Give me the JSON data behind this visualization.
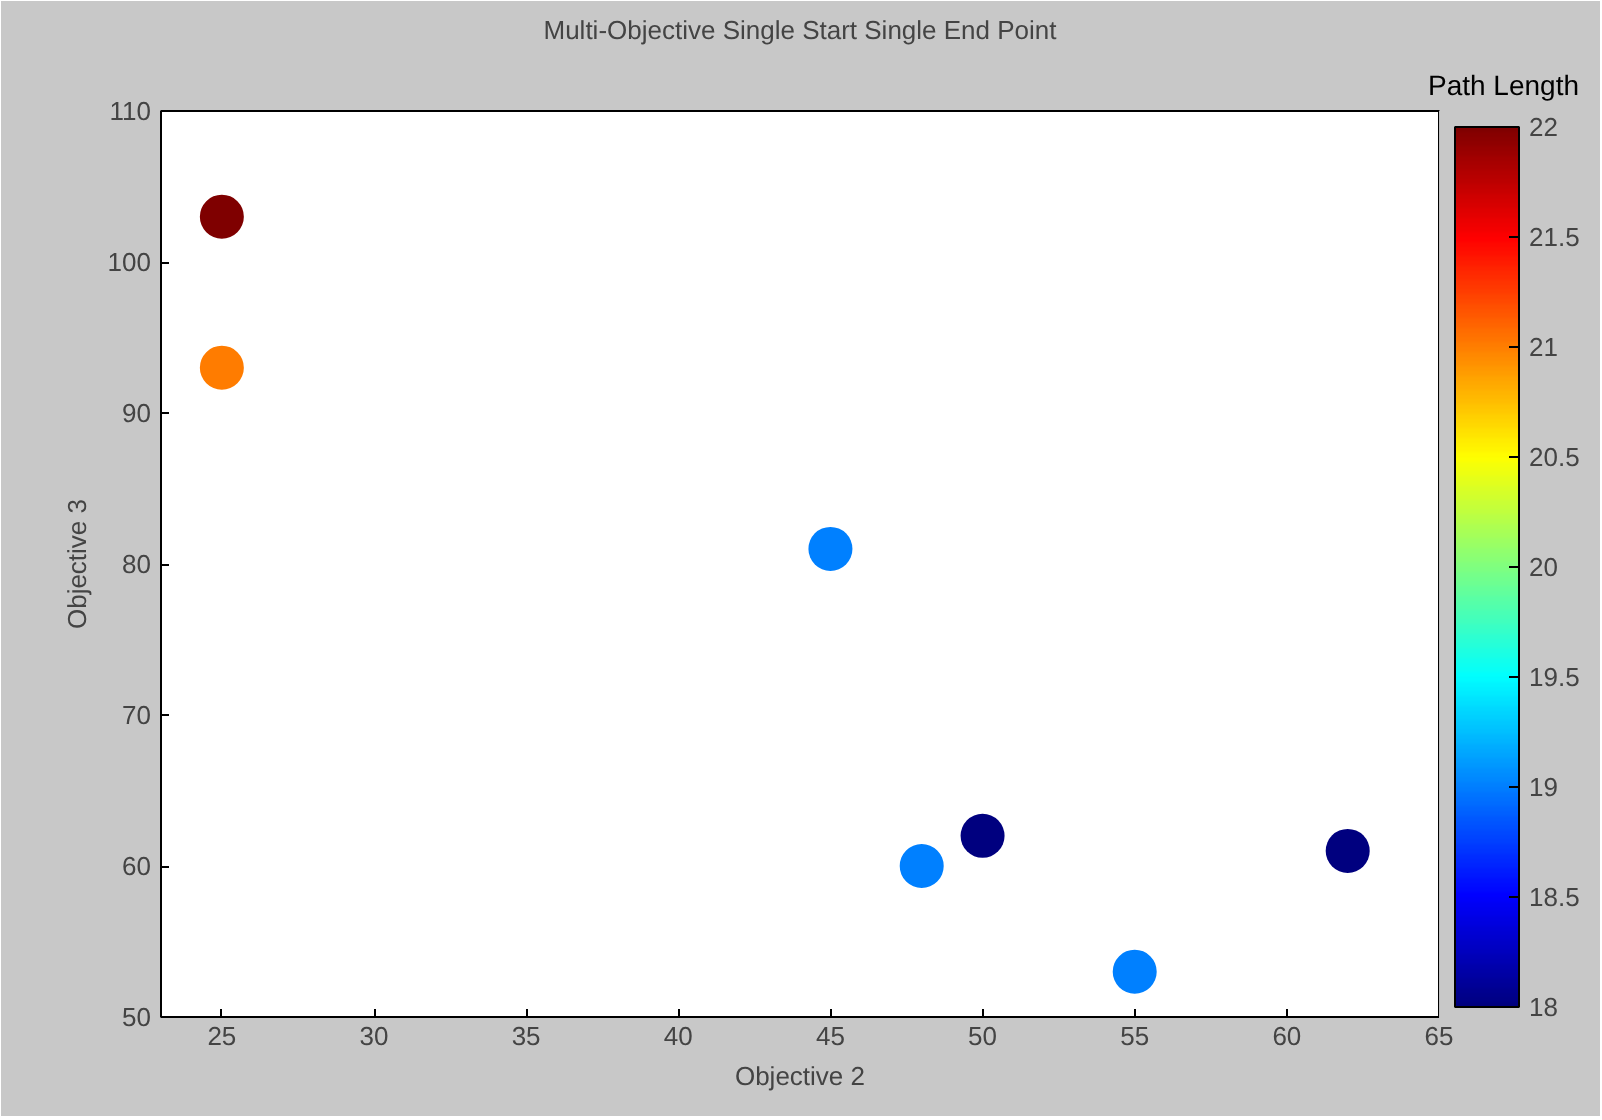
{
  "chart_data": {
    "type": "scatter",
    "title": "Multi-Objective Single Start Single End Point",
    "xlabel": "Objective 2",
    "ylabel": "Objective 3",
    "clabel": "Path Length",
    "x": [
      25,
      25,
      45,
      48,
      50,
      55,
      62
    ],
    "values": [
      103,
      93,
      81,
      60,
      62,
      53,
      61
    ],
    "cvalues": [
      22,
      21,
      19,
      19,
      18,
      19,
      18
    ],
    "xlim": [
      23,
      65
    ],
    "xticks": [
      25,
      30,
      35,
      40,
      45,
      50,
      55,
      60,
      65
    ],
    "ylim": [
      50,
      110
    ],
    "yticks": [
      50,
      60,
      70,
      80,
      90,
      100,
      110
    ],
    "clim": [
      18,
      22
    ],
    "cticks": [
      18,
      18.5,
      19,
      19.5,
      20,
      20.5,
      21,
      21.5,
      22
    ],
    "marker": "circle",
    "grid": false
  }
}
